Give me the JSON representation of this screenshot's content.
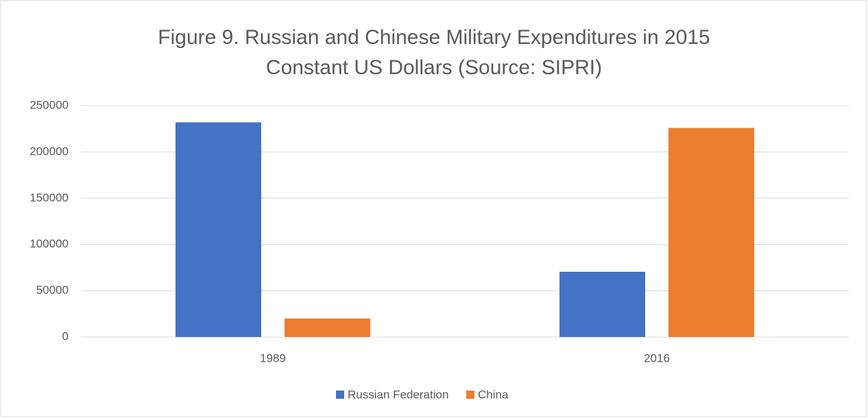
{
  "chart_data": {
    "type": "bar",
    "title": [
      "Figure 9. Russian and Chinese Military Expenditures in 2015",
      "Constant US Dollars (Source: SIPRI)"
    ],
    "categories": [
      "1989",
      "2016"
    ],
    "series": [
      {
        "name": "Russian Federation",
        "color": "#4472c4",
        "values": [
          232000,
          70500
        ]
      },
      {
        "name": "China",
        "color": "#ed7d31",
        "values": [
          20000,
          226000
        ]
      }
    ],
    "ylim": [
      0,
      250000
    ],
    "yticks": [
      0,
      50000,
      100000,
      150000,
      200000,
      250000
    ],
    "grid": true,
    "legend": "bottom"
  }
}
